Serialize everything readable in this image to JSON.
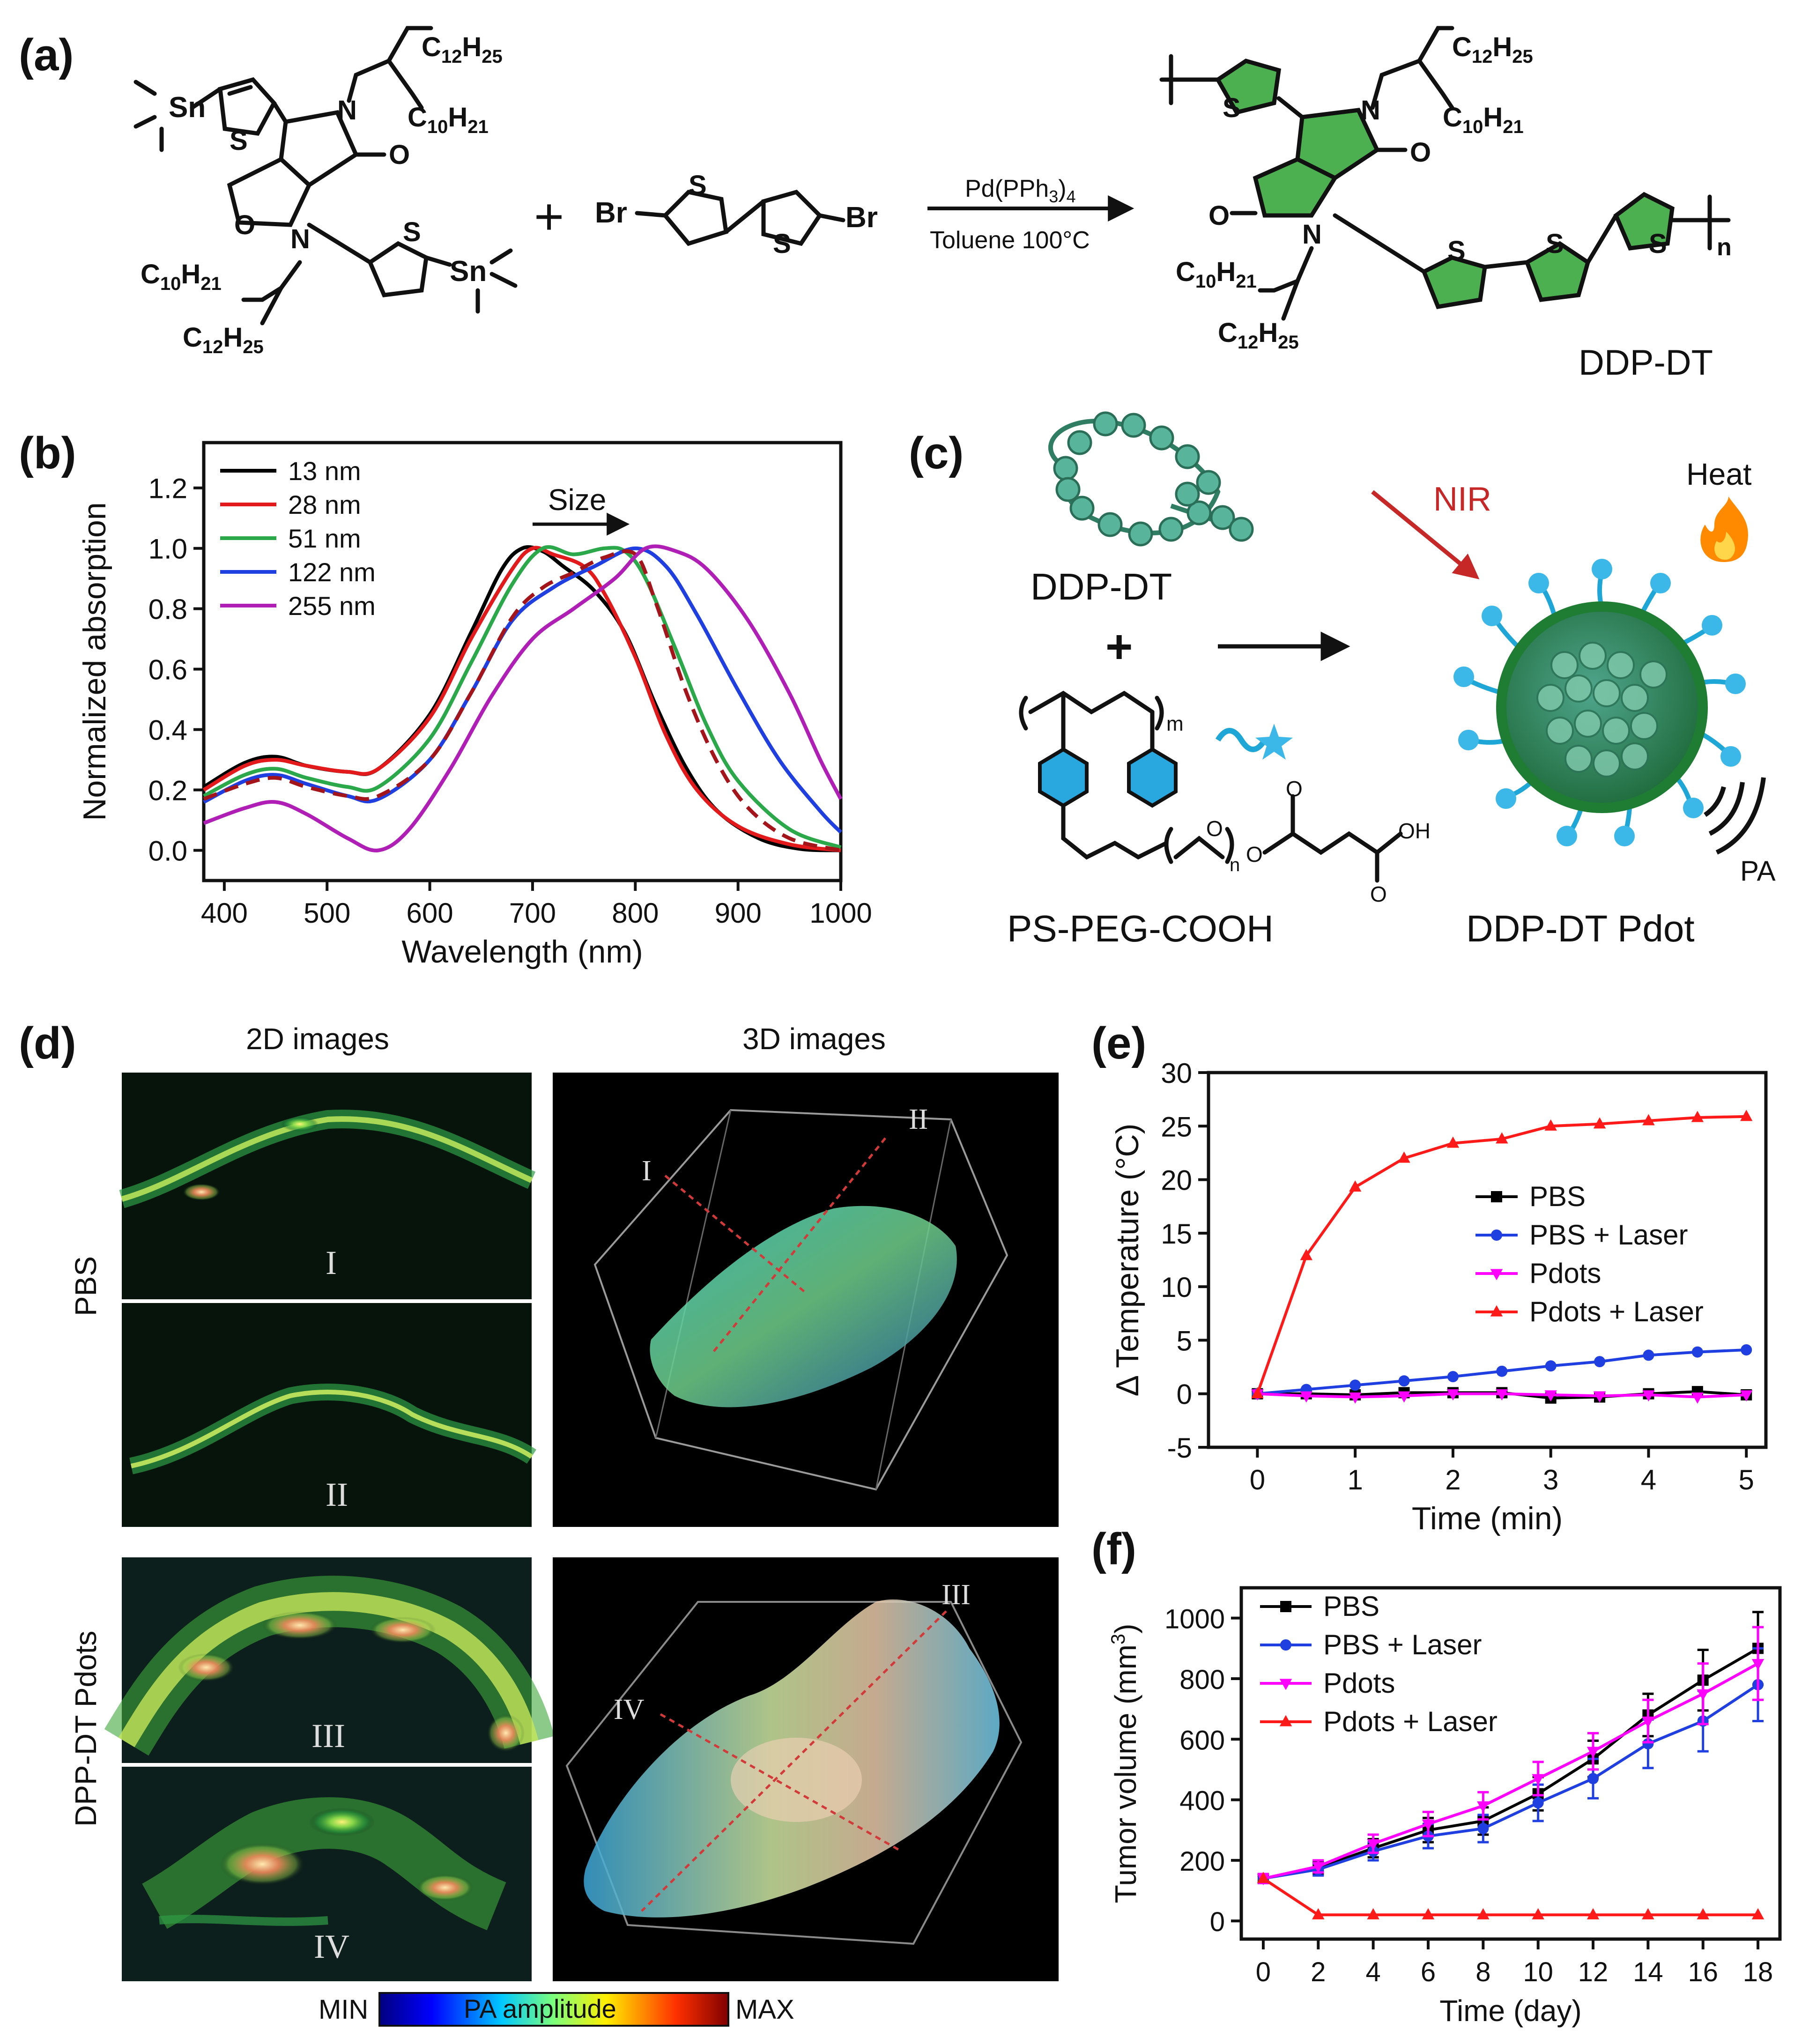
{
  "panels": {
    "a": "(a)",
    "b": "(b)",
    "c": "(c)",
    "d": "(d)",
    "e": "(e)",
    "f": "(f)"
  },
  "scheme_a": {
    "monomer1_groups": [
      "Sn",
      "C12H25",
      "C10H21",
      "C10H21",
      "C12H25",
      "Sn"
    ],
    "atom_N": "N",
    "atom_O": "O",
    "atom_S": "S",
    "atom_Br": "Br",
    "plus": "+",
    "catalyst": "Pd(PPh3)4",
    "conditions": "Toluene  100°C",
    "repeat_index": "n",
    "product_name": "DDP-DT"
  },
  "scheme_c": {
    "polymer_label": "DDP-DT",
    "plus": "+",
    "copolymer_label": "PS-PEG-COOH",
    "index_m": "m",
    "index_n": "n",
    "O": "O",
    "OH": "OH",
    "nir_label": "NIR",
    "heat_label": "Heat",
    "heat_icon": "fire-icon",
    "pa_label": "PA",
    "product_label": "DDP-DT Pdot",
    "colors": {
      "polymer": "#3d9a78",
      "particle": "#2e7d32",
      "arrow_nir": "#c62828",
      "peg": "#1ea7d6",
      "star": "#3cb8e8",
      "benzene": "#29a8e0"
    }
  },
  "panel_d": {
    "col_2d": "2D images",
    "col_3d": "3D images",
    "row_pbs": "PBS",
    "row_pdots": "DPP-DT Pdots",
    "sections": [
      "I",
      "II",
      "III",
      "IV"
    ],
    "colorbar": {
      "min": "MIN",
      "title": "PA amplitude",
      "max": "MAX"
    }
  },
  "chart_data": [
    {
      "id": "b",
      "type": "line",
      "title": "",
      "xlabel": "Wavelength (nm)",
      "ylabel": "Normalized absorption",
      "xlim": [
        380,
        1000
      ],
      "ylim": [
        -0.1,
        1.35
      ],
      "xticks": [
        400,
        500,
        600,
        700,
        800,
        900,
        1000
      ],
      "yticks": [
        0.0,
        0.2,
        0.4,
        0.6,
        0.8,
        1.0,
        1.2
      ],
      "annotation": "Size",
      "series": [
        {
          "name": "13 nm",
          "color": "#000000",
          "dash": false,
          "points": [
            [
              380,
              0.21
            ],
            [
              420,
              0.29
            ],
            [
              450,
              0.31
            ],
            [
              480,
              0.28
            ],
            [
              520,
              0.26
            ],
            [
              550,
              0.27
            ],
            [
              600,
              0.45
            ],
            [
              640,
              0.72
            ],
            [
              670,
              0.93
            ],
            [
              690,
              1.0
            ],
            [
              710,
              0.99
            ],
            [
              730,
              0.94
            ],
            [
              760,
              0.86
            ],
            [
              790,
              0.72
            ],
            [
              820,
              0.48
            ],
            [
              850,
              0.27
            ],
            [
              880,
              0.13
            ],
            [
              920,
              0.04
            ],
            [
              960,
              0.005
            ],
            [
              1000,
              0.0
            ]
          ]
        },
        {
          "name": "28 nm",
          "color": "#e31a1c",
          "dash": false,
          "points": [
            [
              380,
              0.2
            ],
            [
              420,
              0.28
            ],
            [
              450,
              0.3
            ],
            [
              480,
              0.28
            ],
            [
              520,
              0.26
            ],
            [
              550,
              0.27
            ],
            [
              600,
              0.44
            ],
            [
              640,
              0.7
            ],
            [
              680,
              0.93
            ],
            [
              700,
              1.0
            ],
            [
              720,
              0.98
            ],
            [
              750,
              0.94
            ],
            [
              770,
              0.85
            ],
            [
              800,
              0.64
            ],
            [
              830,
              0.38
            ],
            [
              860,
              0.2
            ],
            [
              900,
              0.08
            ],
            [
              950,
              0.02
            ],
            [
              1000,
              0.0
            ]
          ]
        },
        {
          "name": "51 nm",
          "color": "#2aa84a",
          "dash": false,
          "points": [
            [
              380,
              0.18
            ],
            [
              420,
              0.25
            ],
            [
              450,
              0.27
            ],
            [
              480,
              0.24
            ],
            [
              520,
              0.21
            ],
            [
              550,
              0.21
            ],
            [
              600,
              0.37
            ],
            [
              640,
              0.62
            ],
            [
              680,
              0.88
            ],
            [
              710,
              1.0
            ],
            [
              740,
              0.98
            ],
            [
              770,
              1.0
            ],
            [
              790,
              0.99
            ],
            [
              810,
              0.9
            ],
            [
              840,
              0.66
            ],
            [
              870,
              0.41
            ],
            [
              900,
              0.23
            ],
            [
              950,
              0.07
            ],
            [
              1000,
              0.01
            ]
          ]
        },
        {
          "name": "122 nm",
          "color": "#1f3fe0",
          "dash": false,
          "points": [
            [
              380,
              0.16
            ],
            [
              420,
              0.23
            ],
            [
              450,
              0.25
            ],
            [
              480,
              0.22
            ],
            [
              520,
              0.18
            ],
            [
              550,
              0.17
            ],
            [
              600,
              0.3
            ],
            [
              640,
              0.52
            ],
            [
              680,
              0.76
            ],
            [
              720,
              0.87
            ],
            [
              760,
              0.94
            ],
            [
              800,
              1.0
            ],
            [
              830,
              0.94
            ],
            [
              860,
              0.78
            ],
            [
              900,
              0.53
            ],
            [
              940,
              0.3
            ],
            [
              980,
              0.13
            ],
            [
              1000,
              0.06
            ]
          ]
        },
        {
          "name": "255 nm",
          "color": "#b01fb5",
          "dash": false,
          "points": [
            [
              380,
              0.09
            ],
            [
              420,
              0.14
            ],
            [
              450,
              0.16
            ],
            [
              480,
              0.12
            ],
            [
              520,
              0.04
            ],
            [
              550,
              0.0
            ],
            [
              580,
              0.07
            ],
            [
              620,
              0.27
            ],
            [
              660,
              0.51
            ],
            [
              700,
              0.7
            ],
            [
              740,
              0.8
            ],
            [
              780,
              0.9
            ],
            [
              810,
              1.0
            ],
            [
              840,
              0.99
            ],
            [
              870,
              0.93
            ],
            [
              910,
              0.76
            ],
            [
              950,
              0.52
            ],
            [
              980,
              0.3
            ],
            [
              1000,
              0.17
            ]
          ]
        },
        {
          "name": "dashed",
          "color": "#a3151b",
          "dash": true,
          "legend": false,
          "points": [
            [
              380,
              0.17
            ],
            [
              420,
              0.22
            ],
            [
              450,
              0.24
            ],
            [
              480,
              0.21
            ],
            [
              520,
              0.18
            ],
            [
              550,
              0.18
            ],
            [
              600,
              0.3
            ],
            [
              640,
              0.52
            ],
            [
              680,
              0.77
            ],
            [
              710,
              0.87
            ],
            [
              740,
              0.92
            ],
            [
              770,
              0.97
            ],
            [
              800,
              0.98
            ],
            [
              820,
              0.82
            ],
            [
              850,
              0.52
            ],
            [
              880,
              0.29
            ],
            [
              910,
              0.14
            ],
            [
              950,
              0.04
            ],
            [
              1000,
              0.0
            ]
          ]
        }
      ]
    },
    {
      "id": "e",
      "type": "line",
      "title": "",
      "xlabel": "Time (min)",
      "ylabel": "Δ Temperature (°C)",
      "xlim": [
        -0.5,
        5.2
      ],
      "ylim": [
        -5,
        30
      ],
      "xticks": [
        0,
        1,
        2,
        3,
        4,
        5
      ],
      "yticks": [
        -5,
        0,
        5,
        10,
        15,
        20,
        25,
        30
      ],
      "series": [
        {
          "name": "PBS",
          "color": "#000000",
          "marker": "square",
          "x": [
            0,
            0.5,
            1,
            1.5,
            2,
            2.5,
            3,
            3.5,
            4,
            4.5,
            5
          ],
          "y": [
            0,
            0,
            -0.1,
            0.1,
            0.1,
            0.1,
            -0.4,
            -0.3,
            0,
            0.2,
            -0.1
          ]
        },
        {
          "name": "PBS + Laser",
          "color": "#1f3fe0",
          "marker": "circle",
          "x": [
            0,
            0.5,
            1,
            1.5,
            2,
            2.5,
            3,
            3.5,
            4,
            4.5,
            5
          ],
          "y": [
            0,
            0.4,
            0.8,
            1.2,
            1.6,
            2.1,
            2.6,
            3.0,
            3.6,
            3.9,
            4.1
          ]
        },
        {
          "name": "Pdots",
          "color": "#ff00ff",
          "marker": "triangle-down",
          "x": [
            0,
            0.5,
            1,
            1.5,
            2,
            2.5,
            3,
            3.5,
            4,
            4.5,
            5
          ],
          "y": [
            0,
            -0.2,
            -0.3,
            -0.2,
            0,
            0,
            -0.1,
            -0.2,
            -0.1,
            -0.3,
            -0.1
          ]
        },
        {
          "name": "Pdots + Laser",
          "color": "#ff1a1a",
          "marker": "triangle-up",
          "x": [
            0,
            0.5,
            1,
            1.5,
            2,
            2.5,
            3,
            3.5,
            4,
            4.5,
            5
          ],
          "y": [
            0,
            12.9,
            19.3,
            22.0,
            23.4,
            23.8,
            25.0,
            25.2,
            25.5,
            25.8,
            25.9
          ]
        }
      ]
    },
    {
      "id": "f",
      "type": "line",
      "title": "",
      "xlabel": "Time (day)",
      "ylabel": "Tumor volume (mm3)",
      "xlim": [
        -0.8,
        18.8
      ],
      "ylim": [
        -60,
        1100
      ],
      "xticks": [
        0,
        2,
        4,
        6,
        8,
        10,
        12,
        14,
        16,
        18
      ],
      "yticks": [
        0,
        200,
        400,
        600,
        800,
        1000
      ],
      "series": [
        {
          "name": "PBS",
          "color": "#000000",
          "marker": "square",
          "x": [
            0,
            2,
            4,
            6,
            8,
            10,
            12,
            14,
            16,
            18
          ],
          "y": [
            140,
            175,
            240,
            300,
            330,
            420,
            535,
            680,
            795,
            900
          ],
          "err": [
            15,
            20,
            30,
            40,
            45,
            55,
            60,
            70,
            100,
            120
          ]
        },
        {
          "name": "PBS + Laser",
          "color": "#1f3fe0",
          "marker": "circle",
          "x": [
            0,
            2,
            4,
            6,
            8,
            10,
            12,
            14,
            16,
            18
          ],
          "y": [
            140,
            170,
            230,
            280,
            305,
            390,
            470,
            585,
            660,
            780
          ],
          "err": [
            15,
            20,
            30,
            40,
            45,
            60,
            65,
            80,
            100,
            120
          ]
        },
        {
          "name": "Pdots",
          "color": "#ff00ff",
          "marker": "triangle-down",
          "x": [
            0,
            2,
            4,
            6,
            8,
            10,
            12,
            14,
            16,
            18
          ],
          "y": [
            140,
            180,
            255,
            320,
            380,
            470,
            560,
            660,
            750,
            850
          ],
          "err": [
            15,
            20,
            30,
            40,
            45,
            55,
            60,
            70,
            100,
            120
          ]
        },
        {
          "name": "Pdots + Laser",
          "color": "#ff1a1a",
          "marker": "triangle-up",
          "x": [
            0,
            2,
            4,
            6,
            8,
            10,
            12,
            14,
            16,
            18
          ],
          "y": [
            140,
            20,
            20,
            20,
            20,
            20,
            20,
            20,
            20,
            20
          ],
          "err": [
            0,
            0,
            0,
            0,
            0,
            0,
            0,
            0,
            0,
            0
          ]
        }
      ]
    }
  ]
}
